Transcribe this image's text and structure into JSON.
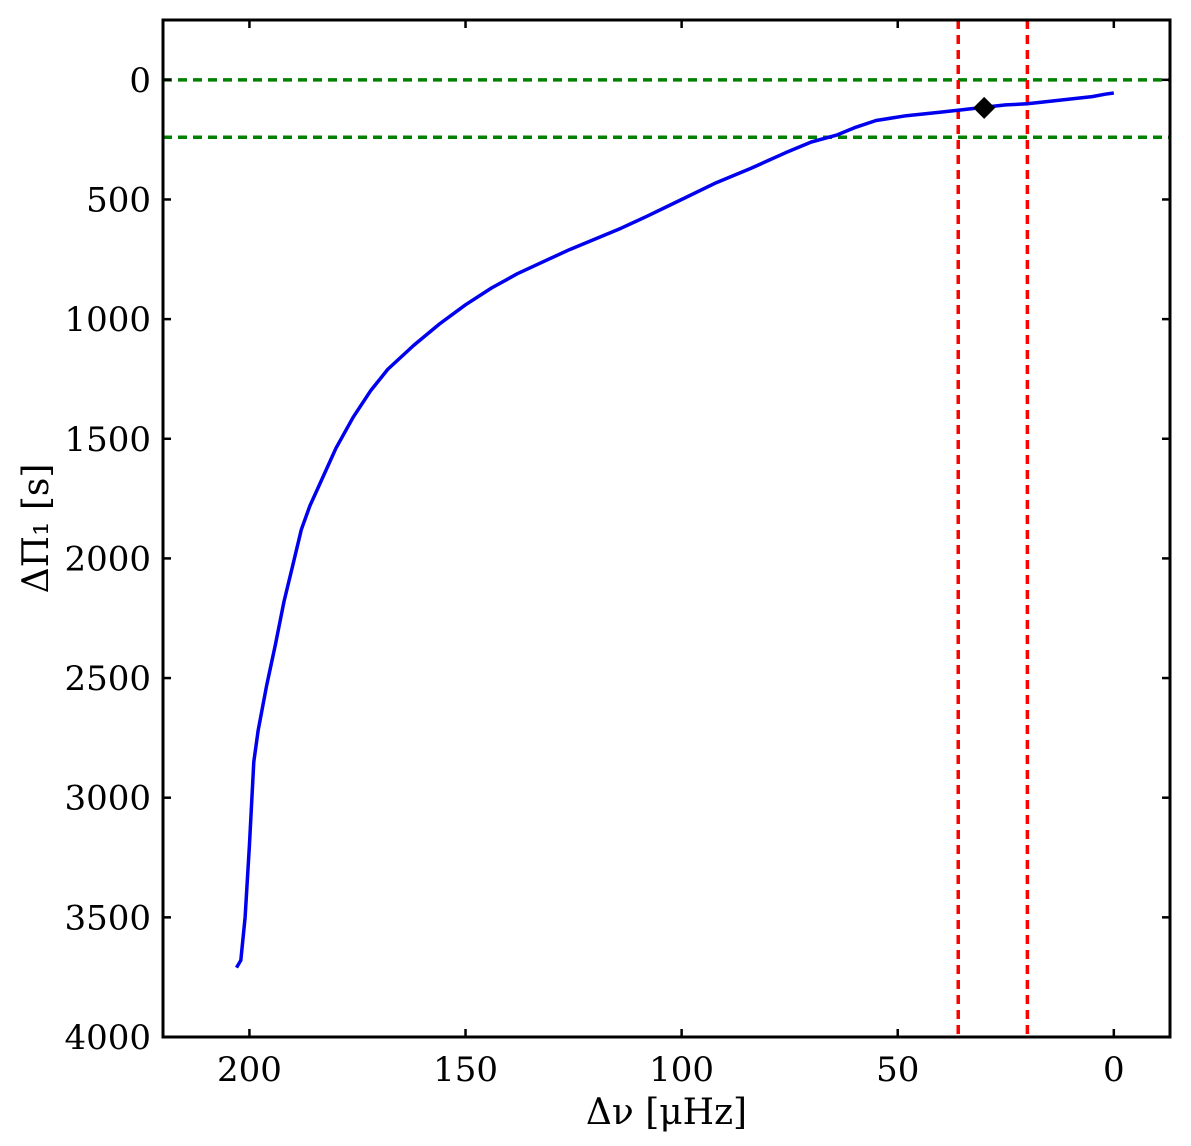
{
  "chart_data": {
    "type": "line",
    "xlabel": "Δν [μHz]",
    "ylabel": "ΔΠ₁ [s]",
    "xlim": [
      220,
      -13
    ],
    "ylim": [
      4000,
      -250
    ],
    "x_ticks": [
      200,
      150,
      100,
      50,
      0
    ],
    "y_ticks": [
      0,
      500,
      1000,
      1500,
      2000,
      2500,
      3000,
      3500,
      4000
    ],
    "grid": false,
    "series": [
      {
        "color": "#0000ee",
        "x": [
          203,
          202,
          201,
          200,
          199,
          198,
          196,
          194,
          192,
          190,
          188,
          186,
          184,
          180,
          176,
          172,
          168,
          162,
          156,
          150,
          144,
          138,
          132,
          126,
          120,
          114,
          108,
          100,
          92,
          84,
          76,
          70,
          64,
          60,
          55,
          48,
          40,
          35,
          30,
          25,
          20,
          15,
          10,
          5,
          2,
          0
        ],
        "y": [
          3710,
          3680,
          3500,
          3200,
          2850,
          2720,
          2530,
          2360,
          2180,
          2030,
          1880,
          1780,
          1700,
          1540,
          1410,
          1300,
          1210,
          1110,
          1020,
          940,
          870,
          810,
          760,
          710,
          665,
          620,
          570,
          500,
          430,
          370,
          305,
          260,
          230,
          200,
          170,
          150,
          135,
          125,
          115,
          105,
          100,
          90,
          80,
          70,
          60,
          55
        ]
      }
    ],
    "reference_lines": {
      "horizontal": {
        "color": "#008000",
        "values": [
          0,
          240
        ]
      },
      "vertical": {
        "color": "#ff0000",
        "values": [
          36,
          20
        ]
      }
    },
    "marker": {
      "shape": "diamond",
      "color": "#000000",
      "x": 30,
      "y": 117
    }
  }
}
